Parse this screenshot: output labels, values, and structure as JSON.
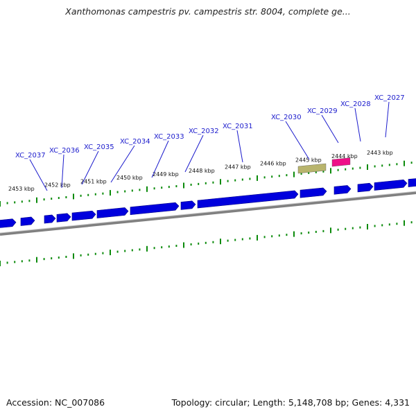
{
  "title": "Xanthomonas campestris pv. campestris str. 8004, complete ge...",
  "footer": {
    "accession": "Accession: NC_007086",
    "summary": "Topology: circular; Length: 5,148,708 bp; Genes: 4,331"
  },
  "colors": {
    "gene": "#0000dd",
    "gene_dark": "#000088",
    "rna_olive": "#b8b46c",
    "rna_pink": "#ee1188",
    "label": "#1a1acc",
    "tick": "#0a8a0a",
    "backbone": "#808080"
  },
  "scale_labels": [
    "2453 kbp",
    "2452 kbp",
    "2451 kbp",
    "2450 kbp",
    "2449 kbp",
    "2448 kbp",
    "2447 kbp",
    "2446 kbp",
    "2445 kbp",
    "2444 kbp",
    "2443 kbp"
  ],
  "gene_labels": [
    "XC_2037",
    "XC_2036",
    "XC_2035",
    "XC_2034",
    "XC_2033",
    "XC_2032",
    "XC_2031",
    "XC_2030",
    "XC_2029",
    "XC_2028",
    "XC_2027"
  ]
}
